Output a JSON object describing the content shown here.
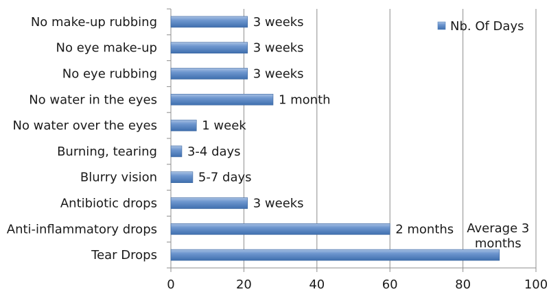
{
  "chart_data": {
    "type": "bar",
    "orientation": "horizontal",
    "categories": [
      "No make-up rubbing",
      "No eye make-up",
      "No eye rubbing",
      "No water in the eyes",
      "No water over the eyes",
      "Burning, tearing",
      "Blurry vision",
      "Antibiotic drops",
      "Anti-inflammatory drops",
      "Tear Drops"
    ],
    "series": [
      {
        "name": "Nb. Of Days",
        "color": "#4f81bd",
        "values": [
          21,
          21,
          21,
          28,
          7,
          3,
          6,
          21,
          60,
          90
        ],
        "data_labels": [
          [
            "3 weeks"
          ],
          [
            "3 weeks"
          ],
          [
            "3 weeks"
          ],
          [
            "1 month"
          ],
          [
            "1 week"
          ],
          [
            "3-4 days"
          ],
          [
            "5-7 days"
          ],
          [
            "3 weeks"
          ],
          [
            "2 months"
          ],
          [
            "Average 3",
            "months"
          ]
        ]
      }
    ],
    "xlim": [
      0,
      100
    ],
    "xticks": [
      0,
      20,
      40,
      60,
      80,
      100
    ],
    "grid": "vertical",
    "legend": "top-right",
    "title": "",
    "xlabel": "",
    "ylabel": ""
  }
}
